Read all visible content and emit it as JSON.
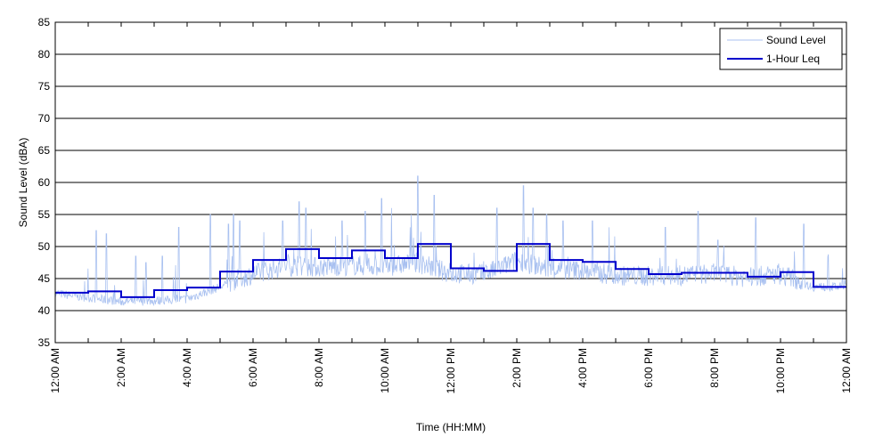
{
  "chart_data": {
    "type": "line",
    "title": "",
    "xlabel": "Time (HH:MM)",
    "ylabel": "Sound Level (dBA)",
    "ylim": [
      35,
      85
    ],
    "yticks": [
      35,
      40,
      45,
      50,
      55,
      60,
      65,
      70,
      75,
      80,
      85
    ],
    "xlim_hours": [
      0,
      24
    ],
    "xtick_labels": [
      "12:00 AM",
      "2:00 AM",
      "4:00 AM",
      "6:00 AM",
      "8:00 AM",
      "10:00 AM",
      "12:00 PM",
      "2:00 PM",
      "4:00 PM",
      "6:00 PM",
      "8:00 PM",
      "10:00 PM",
      "12:00 AM"
    ],
    "grid": "horizontal",
    "legend_position": "top-right",
    "colors": {
      "sound_level": "#a8c0f0",
      "leq": "#0000cc",
      "axis": "#000000"
    },
    "series": [
      {
        "name": "Sound Level",
        "style": "thin-light-line",
        "hourly_base": [
          42.5,
          41.8,
          41.2,
          41.3,
          41.6,
          43.5,
          45.2,
          46.5,
          46.3,
          46.6,
          46.4,
          47.0,
          45.3,
          45.2,
          47.3,
          46.0,
          45.8,
          45.0,
          44.9,
          45.0,
          45.3,
          44.7,
          45.2,
          43.5
        ],
        "approx_min": 40.5,
        "approx_max": 61.0,
        "spike_times_hours": [
          1.25,
          1.55,
          2.45,
          2.75,
          3.25,
          3.75,
          4.7,
          5.25,
          5.4,
          5.6,
          6.9,
          7.4,
          7.6,
          8.7,
          9.4,
          9.9,
          10.2,
          10.8,
          11.0,
          11.5,
          13.4,
          14.2,
          14.5,
          14.9,
          15.4,
          16.3,
          16.8,
          18.5,
          19.5,
          20.1,
          21.25,
          22.7
        ],
        "spike_peaks": [
          52.5,
          52.0,
          48.5,
          47.5,
          48.5,
          53.0,
          55.0,
          53.5,
          55.0,
          54.0,
          54.0,
          57.0,
          56.0,
          54.0,
          55.5,
          57.5,
          56.0,
          55.0,
          61.0,
          58.0,
          56.0,
          59.5,
          56.0,
          55.0,
          54.0,
          54.0,
          53.0,
          53.0,
          55.5,
          51.0,
          54.5,
          53.5
        ]
      },
      {
        "name": "1-Hour Leq",
        "style": "step",
        "x_hours": [
          0,
          1,
          2,
          3,
          4,
          5,
          6,
          7,
          8,
          9,
          10,
          11,
          12,
          13,
          14,
          15,
          16,
          17,
          18,
          19,
          20,
          21,
          22,
          23
        ],
        "values": [
          42.8,
          43.0,
          42.1,
          43.2,
          43.6,
          46.1,
          47.9,
          49.6,
          48.2,
          49.4,
          48.2,
          50.4,
          46.6,
          46.2,
          50.4,
          47.9,
          47.6,
          46.5,
          45.7,
          45.9,
          45.9,
          45.3,
          46.0,
          43.7
        ]
      }
    ]
  }
}
